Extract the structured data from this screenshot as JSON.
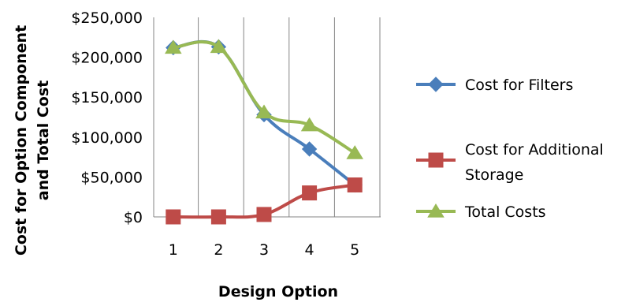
{
  "chart_data": {
    "type": "line",
    "title": "",
    "xlabel": "Design Option",
    "ylabel_line1": "Cost for Option Component",
    "ylabel_line2": "and Total Cost",
    "categories": [
      "1",
      "2",
      "3",
      "4",
      "5"
    ],
    "y_ticks": [
      "$0",
      "$50,000",
      "$100,000",
      "$150,000",
      "$200,000",
      "$250,000"
    ],
    "y_tick_values": [
      0,
      50000,
      100000,
      150000,
      200000,
      250000
    ],
    "ylim": [
      0,
      250000
    ],
    "grid": "vertical",
    "legend_position": "right",
    "series": [
      {
        "name": "Cost for Filters",
        "name_line1": "Cost for Filters",
        "name_line2": "",
        "color": "#4a7ebb",
        "marker": "diamond",
        "values": [
          212000,
          213000,
          128000,
          85000,
          40000
        ]
      },
      {
        "name": "Cost for Additional Storage",
        "name_line1": "Cost for Additional",
        "name_line2": "Storage",
        "color": "#be4b48",
        "marker": "square",
        "values": [
          0,
          0,
          3000,
          30000,
          40000
        ]
      },
      {
        "name": "Total Costs",
        "name_line1": "Total Costs",
        "name_line2": "",
        "color": "#98b954",
        "marker": "triangle",
        "values": [
          212000,
          213000,
          131000,
          115000,
          80000
        ]
      }
    ]
  }
}
